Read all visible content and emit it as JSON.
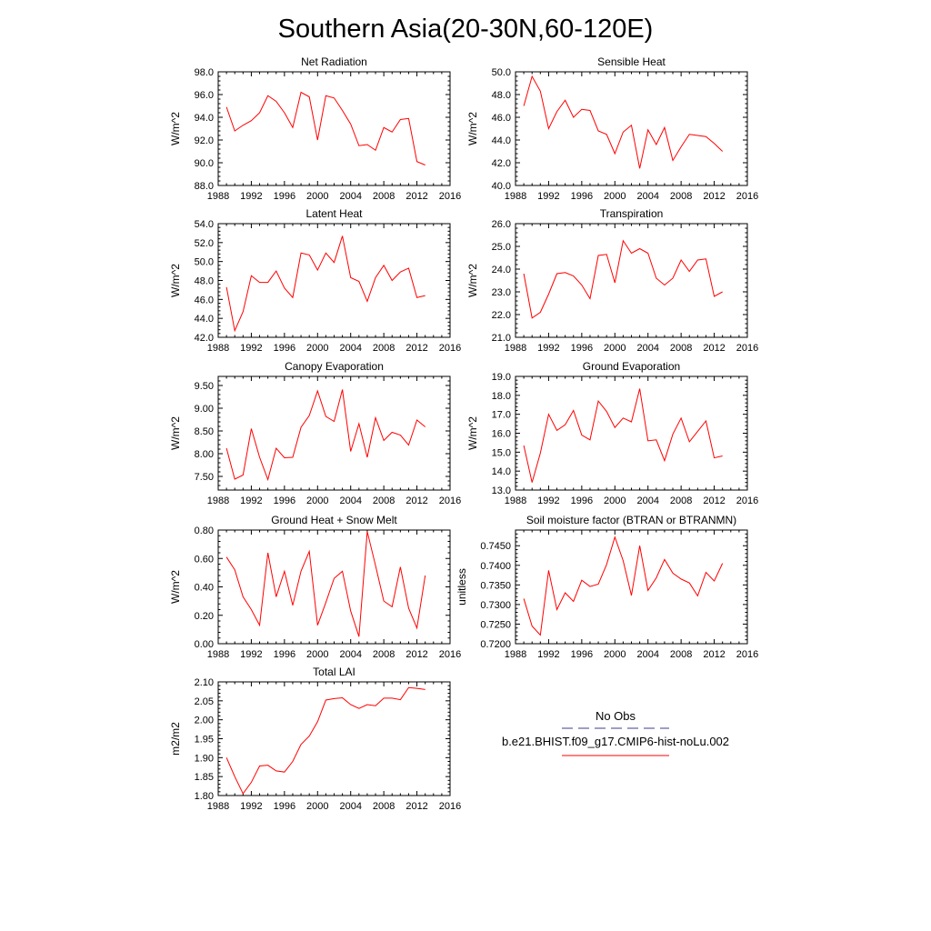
{
  "title": "Southern Asia(20-30N,60-120E)",
  "colors": {
    "model": "#ff0000",
    "obs": "#3c3c8c"
  },
  "legend": {
    "obs_label": "No Obs",
    "model_label": "b.e21.BHIST.f09_g17.CMIP6-hist-noLu.002"
  },
  "chart_data": [
    {
      "type": "line",
      "title": "Net Radiation",
      "ylabel": "W/m^2",
      "xlim": [
        1988,
        2016
      ],
      "ylim": [
        88,
        98
      ],
      "xticks": [
        "1988",
        "1992",
        "1996",
        "2000",
        "2004",
        "2008",
        "2012",
        "2016"
      ],
      "yticks": [
        "88.0",
        "90.0",
        "92.0",
        "94.0",
        "96.0",
        "98.0"
      ],
      "x": [
        1989,
        1990,
        1991,
        1992,
        1993,
        1994,
        1995,
        1996,
        1997,
        1998,
        1999,
        2000,
        2001,
        2002,
        2003,
        2004,
        2005,
        2006,
        2007,
        2008,
        2009,
        2010,
        2011,
        2012,
        2013
      ],
      "series": [
        {
          "values": [
            94.9,
            92.8,
            93.3,
            93.7,
            94.4,
            95.9,
            95.4,
            94.4,
            93.1,
            96.2,
            95.8,
            92.0,
            95.9,
            95.7,
            94.6,
            93.4,
            91.5,
            91.6,
            91.1,
            93.1,
            92.7,
            93.8,
            93.9,
            90.1,
            89.8
          ]
        }
      ]
    },
    {
      "type": "line",
      "title": "Sensible Heat",
      "ylabel": "W/m^2",
      "xlim": [
        1988,
        2016
      ],
      "ylim": [
        40,
        50
      ],
      "xticks": [
        "1988",
        "1992",
        "1996",
        "2000",
        "2004",
        "2008",
        "2012",
        "2016"
      ],
      "yticks": [
        "40.0",
        "42.0",
        "44.0",
        "46.0",
        "48.0",
        "50.0"
      ],
      "x": [
        1989,
        1990,
        1991,
        1992,
        1993,
        1994,
        1995,
        1996,
        1997,
        1998,
        1999,
        2000,
        2001,
        2002,
        2003,
        2004,
        2005,
        2006,
        2007,
        2008,
        2009,
        2010,
        2011,
        2012,
        2013
      ],
      "series": [
        {
          "values": [
            47.0,
            49.6,
            48.3,
            45.0,
            46.5,
            47.5,
            46.0,
            46.7,
            46.6,
            44.8,
            44.5,
            42.8,
            44.7,
            45.3,
            41.5,
            44.9,
            43.6,
            45.1,
            42.2,
            43.4,
            44.5,
            44.4,
            44.3,
            43.7,
            43.0
          ]
        }
      ]
    },
    {
      "type": "line",
      "title": "Latent Heat",
      "ylabel": "W/m^2",
      "xlim": [
        1988,
        2016
      ],
      "ylim": [
        42,
        54
      ],
      "xticks": [
        "1988",
        "1992",
        "1996",
        "2000",
        "2004",
        "2008",
        "2012",
        "2016"
      ],
      "yticks": [
        "42.0",
        "44.0",
        "46.0",
        "48.0",
        "50.0",
        "52.0",
        "54.0"
      ],
      "x": [
        1989,
        1990,
        1991,
        1992,
        1993,
        1994,
        1995,
        1996,
        1997,
        1998,
        1999,
        2000,
        2001,
        2002,
        2003,
        2004,
        2005,
        2006,
        2007,
        2008,
        2009,
        2010,
        2011,
        2012,
        2013
      ],
      "series": [
        {
          "values": [
            47.3,
            42.7,
            44.7,
            48.5,
            47.8,
            47.8,
            49.0,
            47.2,
            46.2,
            50.9,
            50.7,
            49.1,
            50.9,
            49.9,
            52.7,
            48.3,
            47.9,
            45.8,
            48.3,
            49.6,
            48.0,
            48.9,
            49.3,
            46.2,
            46.4
          ]
        }
      ]
    },
    {
      "type": "line",
      "title": "Transpiration",
      "ylabel": "W/m^2",
      "xlim": [
        1988,
        2016
      ],
      "ylim": [
        21,
        26
      ],
      "xticks": [
        "1988",
        "1992",
        "1996",
        "2000",
        "2004",
        "2008",
        "2012",
        "2016"
      ],
      "yticks": [
        "21.0",
        "22.0",
        "23.0",
        "24.0",
        "25.0",
        "26.0"
      ],
      "x": [
        1989,
        1990,
        1991,
        1992,
        1993,
        1994,
        1995,
        1996,
        1997,
        1998,
        1999,
        2000,
        2001,
        2002,
        2003,
        2004,
        2005,
        2006,
        2007,
        2008,
        2009,
        2010,
        2011,
        2012,
        2013
      ],
      "series": [
        {
          "values": [
            23.8,
            21.85,
            22.1,
            22.9,
            23.8,
            23.85,
            23.7,
            23.3,
            22.7,
            24.6,
            24.65,
            23.4,
            25.25,
            24.7,
            24.9,
            24.7,
            23.6,
            23.3,
            23.6,
            24.4,
            23.9,
            24.4,
            24.45,
            22.8,
            23.0
          ]
        }
      ]
    },
    {
      "type": "line",
      "title": "Canopy Evaporation",
      "ylabel": "W/m^2",
      "xlim": [
        1988,
        2016
      ],
      "ylim": [
        7.2,
        9.7
      ],
      "xticks": [
        "1988",
        "1992",
        "1996",
        "2000",
        "2004",
        "2008",
        "2012",
        "2016"
      ],
      "yticks": [
        "7.50",
        "8.00",
        "8.50",
        "9.00",
        "9.50"
      ],
      "x": [
        1989,
        1990,
        1991,
        1992,
        1993,
        1994,
        1995,
        1996,
        1997,
        1998,
        1999,
        2000,
        2001,
        2002,
        2003,
        2004,
        2005,
        2006,
        2007,
        2008,
        2009,
        2010,
        2011,
        2012,
        2013
      ],
      "series": [
        {
          "values": [
            8.12,
            7.44,
            7.53,
            8.55,
            7.92,
            7.43,
            8.12,
            7.91,
            7.92,
            8.58,
            8.84,
            9.38,
            8.82,
            8.71,
            9.41,
            8.05,
            8.66,
            7.92,
            8.79,
            8.29,
            8.47,
            8.41,
            8.19,
            8.74,
            8.59
          ]
        }
      ]
    },
    {
      "type": "line",
      "title": "Ground Evaporation",
      "ylabel": "W/m^2",
      "xlim": [
        1988,
        2016
      ],
      "ylim": [
        13,
        19
      ],
      "xticks": [
        "1988",
        "1992",
        "1996",
        "2000",
        "2004",
        "2008",
        "2012",
        "2016"
      ],
      "yticks": [
        "13.0",
        "14.0",
        "15.0",
        "16.0",
        "17.0",
        "18.0",
        "19.0"
      ],
      "x": [
        1989,
        1990,
        1991,
        1992,
        1993,
        1994,
        1995,
        1996,
        1997,
        1998,
        1999,
        2000,
        2001,
        2002,
        2003,
        2004,
        2005,
        2006,
        2007,
        2008,
        2009,
        2010,
        2011,
        2012,
        2013
      ],
      "series": [
        {
          "values": [
            15.35,
            13.4,
            14.95,
            17.0,
            16.15,
            16.45,
            17.2,
            15.9,
            15.65,
            17.7,
            17.15,
            16.3,
            16.8,
            16.6,
            18.35,
            15.6,
            15.65,
            14.55,
            15.95,
            16.8,
            15.55,
            16.1,
            16.65,
            14.7,
            14.8
          ]
        }
      ]
    },
    {
      "type": "line",
      "title": "Ground Heat + Snow Melt",
      "ylabel": "W/m^2",
      "xlim": [
        1988,
        2016
      ],
      "ylim": [
        0,
        0.8
      ],
      "xticks": [
        "1988",
        "1992",
        "1996",
        "2000",
        "2004",
        "2008",
        "2012",
        "2016"
      ],
      "yticks": [
        "0.00",
        "0.20",
        "0.40",
        "0.60",
        "0.80"
      ],
      "x": [
        1989,
        1990,
        1991,
        1992,
        1993,
        1994,
        1995,
        1996,
        1997,
        1998,
        1999,
        2000,
        2001,
        2002,
        2003,
        2004,
        2005,
        2006,
        2007,
        2008,
        2009,
        2010,
        2011,
        2012,
        2013
      ],
      "series": [
        {
          "values": [
            0.61,
            0.52,
            0.33,
            0.24,
            0.13,
            0.64,
            0.33,
            0.51,
            0.27,
            0.51,
            0.65,
            0.13,
            0.29,
            0.46,
            0.51,
            0.23,
            0.05,
            0.79,
            0.55,
            0.3,
            0.26,
            0.54,
            0.25,
            0.11,
            0.48
          ]
        }
      ]
    },
    {
      "type": "line",
      "title": "Soil moisture factor (BTRAN or BTRANMN)",
      "ylabel": "unitless",
      "xlim": [
        1988,
        2016
      ],
      "ylim": [
        0.72,
        0.749
      ],
      "xticks": [
        "1988",
        "1992",
        "1996",
        "2000",
        "2004",
        "2008",
        "2012",
        "2016"
      ],
      "yticks": [
        "0.7200",
        "0.7250",
        "0.7300",
        "0.7350",
        "0.7400",
        "0.7450"
      ],
      "x": [
        1989,
        1990,
        1991,
        1992,
        1993,
        1994,
        1995,
        1996,
        1997,
        1998,
        1999,
        2000,
        2001,
        2002,
        2003,
        2004,
        2005,
        2006,
        2007,
        2008,
        2009,
        2010,
        2011,
        2012,
        2013
      ],
      "series": [
        {
          "values": [
            0.7315,
            0.7245,
            0.7222,
            0.7387,
            0.7287,
            0.733,
            0.7308,
            0.7362,
            0.7346,
            0.7352,
            0.7402,
            0.7472,
            0.7412,
            0.7323,
            0.745,
            0.7336,
            0.7368,
            0.7415,
            0.738,
            0.7365,
            0.7355,
            0.7322,
            0.7382,
            0.736,
            0.7405
          ]
        }
      ]
    },
    {
      "type": "line",
      "title": "Total LAI",
      "ylabel": "m2/m2",
      "xlim": [
        1988,
        2016
      ],
      "ylim": [
        1.8,
        2.1
      ],
      "xticks": [
        "1988",
        "1992",
        "1996",
        "2000",
        "2004",
        "2008",
        "2012",
        "2016"
      ],
      "yticks": [
        "1.80",
        "1.85",
        "1.90",
        "1.95",
        "2.00",
        "2.05",
        "2.10"
      ],
      "x": [
        1989,
        1990,
        1991,
        1992,
        1993,
        1994,
        1995,
        1996,
        1997,
        1998,
        1999,
        2000,
        2001,
        2002,
        2003,
        2004,
        2005,
        2006,
        2007,
        2008,
        2009,
        2010,
        2011,
        2012,
        2013
      ],
      "series": [
        {
          "values": [
            1.9,
            1.85,
            1.805,
            1.835,
            1.878,
            1.88,
            1.865,
            1.862,
            1.89,
            1.935,
            1.957,
            1.995,
            2.052,
            2.056,
            2.058,
            2.04,
            2.03,
            2.04,
            2.037,
            2.057,
            2.057,
            2.053,
            2.085,
            2.083,
            2.08
          ]
        }
      ]
    }
  ]
}
